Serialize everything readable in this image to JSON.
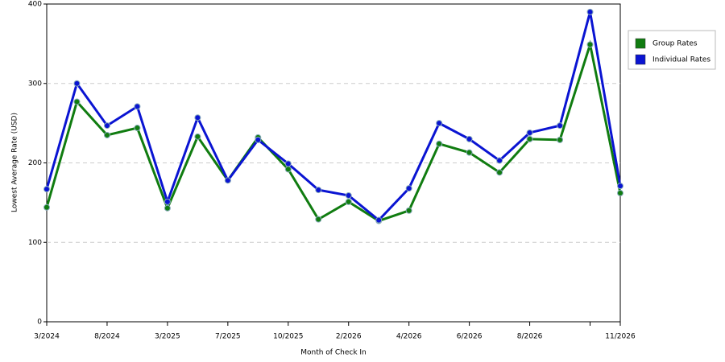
{
  "chart_data": {
    "type": "line",
    "xlabel": "Month of Check In",
    "ylabel": "Lowest Average Rate (USD)",
    "categories": [
      "3/2024",
      null,
      "8/2024",
      null,
      "3/2025",
      null,
      "7/2025",
      null,
      "10/2025",
      null,
      "2/2026",
      null,
      "4/2026",
      null,
      "6/2026",
      null,
      "8/2026",
      null,
      null,
      "11/2026"
    ],
    "series": [
      {
        "name": "Group Rates",
        "color": "#107c10",
        "values": [
          144,
          277,
          235,
          244,
          143,
          233,
          178,
          232,
          192,
          129,
          151,
          127,
          140,
          224,
          213,
          188,
          230,
          229,
          349,
          162
        ]
      },
      {
        "name": "Individual Rates",
        "color": "#0a14d2",
        "values": [
          167,
          300,
          247,
          271,
          151,
          257,
          178,
          229,
          199,
          166,
          159,
          128,
          168,
          250,
          230,
          203,
          238,
          247,
          390,
          171
        ]
      }
    ],
    "ylim": [
      0,
      400
    ],
    "yticks": [
      0,
      100,
      200,
      300,
      400
    ],
    "grid": true,
    "legend": "right"
  }
}
